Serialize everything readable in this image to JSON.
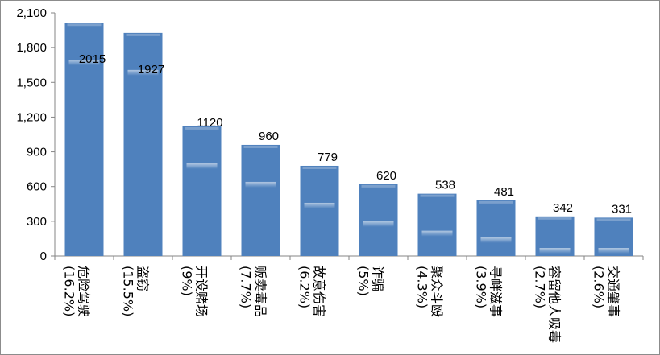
{
  "chart_data": {
    "type": "bar",
    "title": "",
    "xlabel": "",
    "ylabel": "",
    "categories": [
      "危险驾驶(16.2%)",
      "盗窃(15.5%)",
      "开设赌场(9%)",
      "贩卖毒品(7.7%)",
      "故意伤害(6.2%)",
      "诈骗(5%)",
      "聚众斗殴(4.3%)",
      "寻衅滋事(3.9%)",
      "容留他人吸毒(2.7%)",
      "交通肇事(2.6%)"
    ],
    "values": [
      2015,
      1927,
      1120,
      960,
      779,
      620,
      538,
      481,
      342,
      331
    ],
    "ylim": [
      0,
      2100
    ],
    "yticks": [
      "0",
      "300",
      "600",
      "900",
      "1,200",
      "1,500",
      "1,800",
      "2,100"
    ],
    "grid": false,
    "legend": "none",
    "bar_color": "#4f81bd"
  }
}
